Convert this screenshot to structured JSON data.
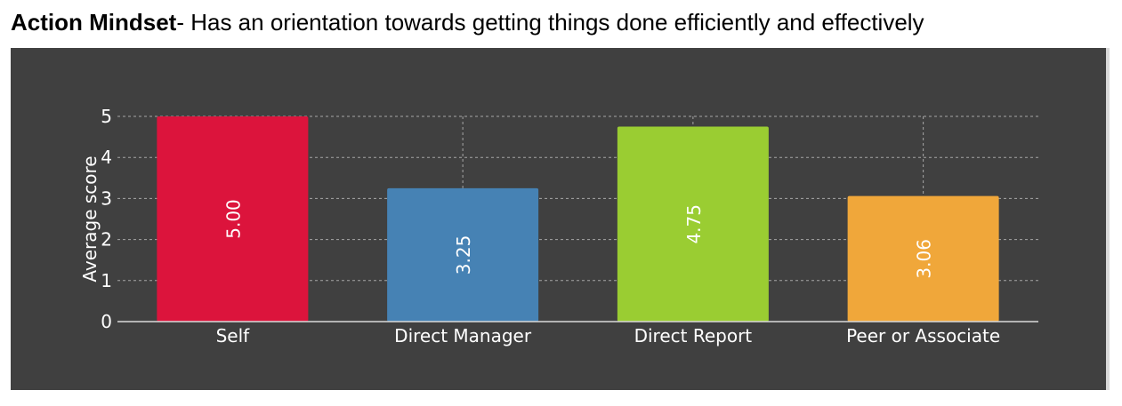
{
  "heading": {
    "bold": "Action Mindset",
    "rest": "- Has an orientation towards getting things done efficiently and effectively"
  },
  "chart_data": {
    "type": "bar",
    "categories": [
      "Self",
      "Direct Manager",
      "Direct Report",
      "Peer or Associate"
    ],
    "values": [
      5.0,
      3.25,
      4.75,
      3.06
    ],
    "value_labels": [
      "5.00",
      "3.25",
      "4.75",
      "3.06"
    ],
    "colors": [
      "#dc143c",
      "#4682b4",
      "#9acd32",
      "#f0a73a"
    ],
    "title": "",
    "xlabel": "",
    "ylabel": "Average score",
    "ylim": [
      0,
      5
    ],
    "yticks": [
      0,
      1,
      2,
      3,
      4,
      5
    ],
    "grid": true,
    "legend": "none",
    "background": "#404040"
  }
}
